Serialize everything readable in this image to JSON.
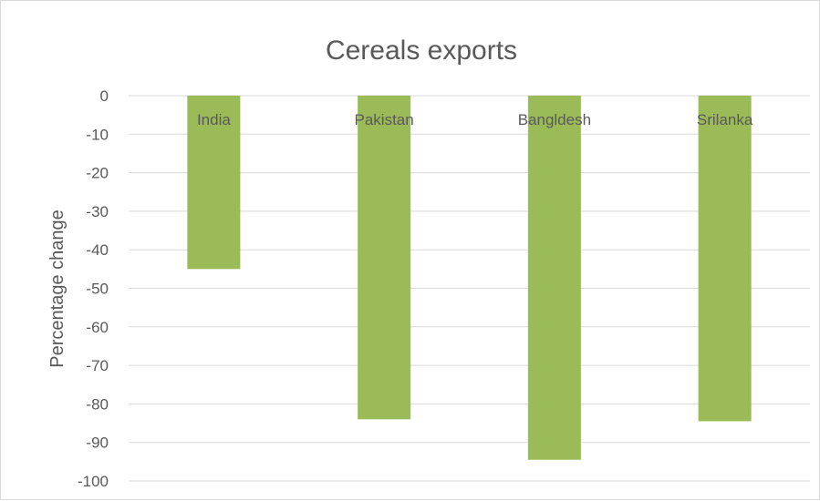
{
  "chart_data": {
    "type": "bar",
    "title": "Cereals exports",
    "xlabel": "",
    "ylabel": "Percentage change",
    "categories": [
      "India",
      "Pakistan",
      "Bangldesh",
      "Srilanka"
    ],
    "values": [
      -45,
      -84,
      -94.5,
      -84.5
    ],
    "ylim": [
      -100,
      0
    ],
    "yticks": [
      0,
      -10,
      -20,
      -30,
      -40,
      -50,
      -60,
      -70,
      -80,
      -90,
      -100
    ],
    "grid": true,
    "legend": "none",
    "bar_color": "#9bbb59",
    "category_labels_position": "inside-top"
  }
}
